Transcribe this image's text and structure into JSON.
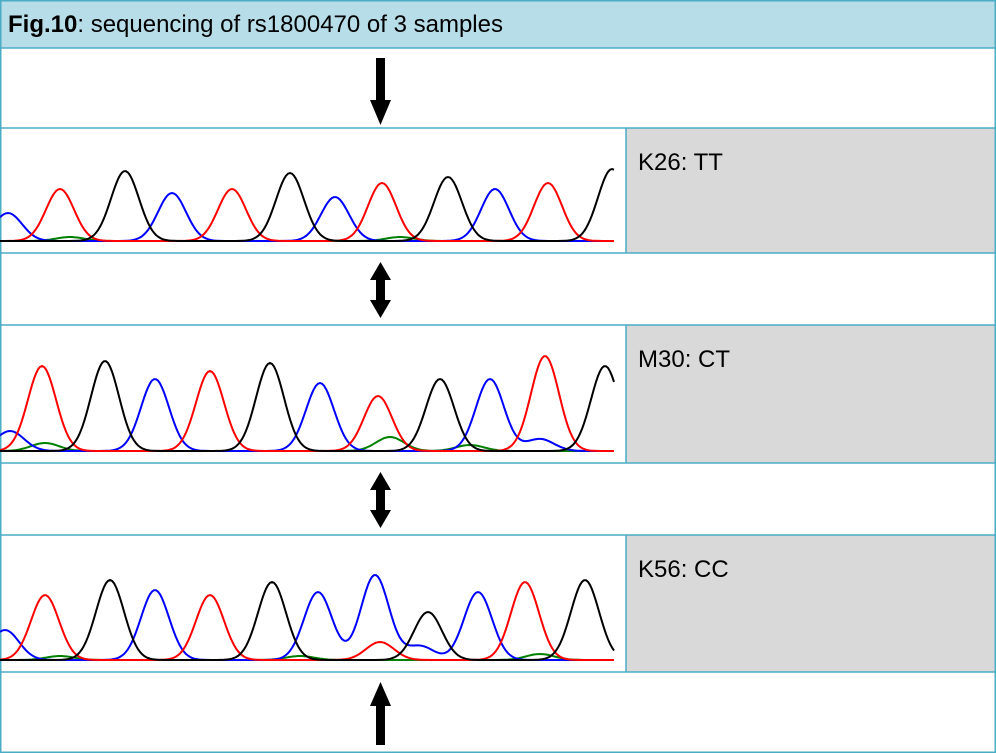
{
  "header": {
    "label": "Fig.10",
    "title": ": sequencing of rs1800470 of 3 samples"
  },
  "samples": [
    {
      "label": "K26: TT"
    },
    {
      "label": "M30: CT"
    },
    {
      "label": "K56: CC"
    }
  ]
}
